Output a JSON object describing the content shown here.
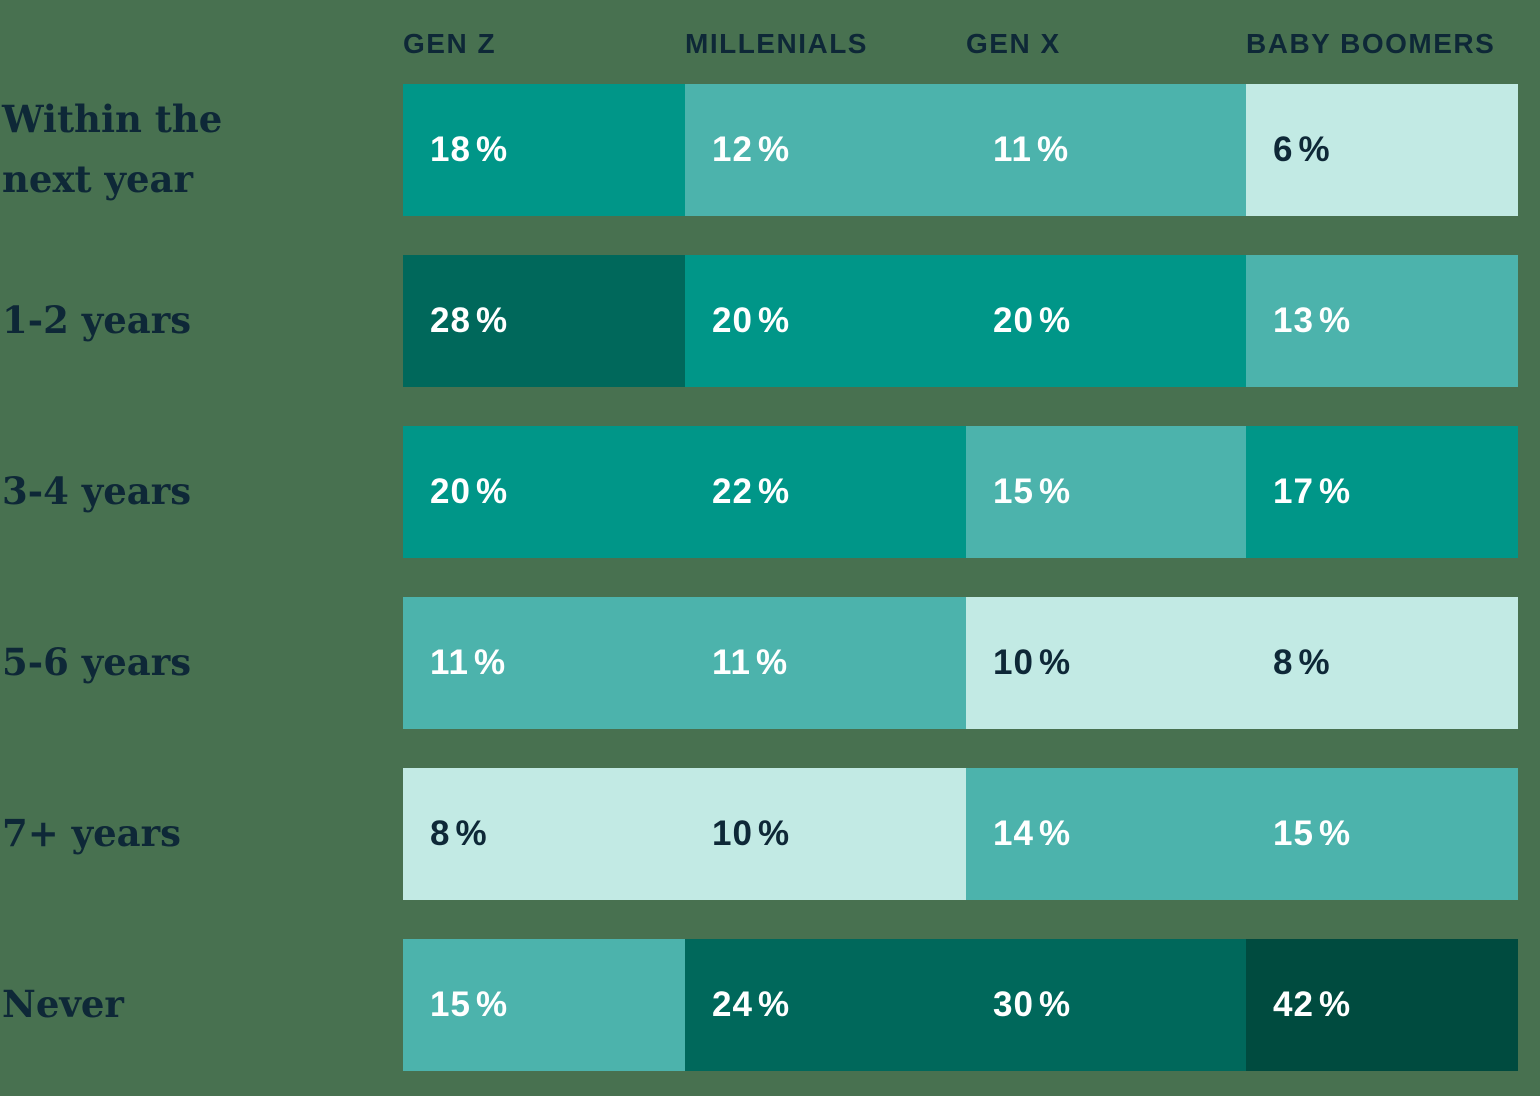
{
  "background_color": "#487150",
  "text_colors": {
    "header": "#0E2837",
    "row_label": "#0E2837",
    "cell_light_text": "#FFFFFF",
    "cell_dark_text": "#0E2837"
  },
  "palette": {
    "darkest": "#004B3F",
    "dark": "#00685B",
    "teal": "#009688",
    "medium": "#4CB3AC",
    "light": "#C2EAE4"
  },
  "chart_data": {
    "type": "heatmap",
    "title": "",
    "columns": [
      "GEN Z",
      "MILLENIALS",
      "GEN X",
      "BABY BOOMERS"
    ],
    "rows": [
      "Within the next year",
      "1-2 years",
      "3-4 years",
      "5-6 years",
      "7+ years",
      "Never"
    ],
    "unit": "%",
    "values": [
      [
        18,
        12,
        11,
        6
      ],
      [
        28,
        20,
        20,
        13
      ],
      [
        20,
        22,
        15,
        17
      ],
      [
        11,
        11,
        10,
        8
      ],
      [
        8,
        10,
        14,
        15
      ],
      [
        15,
        24,
        30,
        42
      ]
    ],
    "cell_colors": [
      [
        "teal",
        "medium",
        "medium",
        "light"
      ],
      [
        "dark",
        "teal",
        "teal",
        "medium"
      ],
      [
        "teal",
        "teal",
        "medium",
        "teal"
      ],
      [
        "medium",
        "medium",
        "light",
        "light"
      ],
      [
        "light",
        "light",
        "medium",
        "medium"
      ],
      [
        "medium",
        "dark",
        "dark",
        "darkest"
      ]
    ],
    "legend_position": "none",
    "grid": false
  }
}
